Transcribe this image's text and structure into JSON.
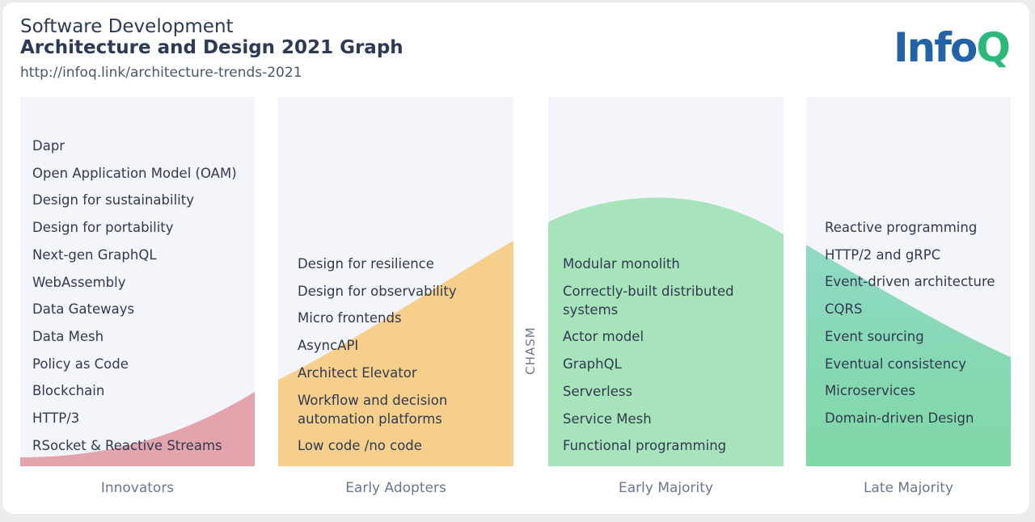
{
  "header": {
    "line1": "Software Development",
    "line2": "Architecture and Design 2021 Graph",
    "url": "http://infoq.link/architecture-trends-2021"
  },
  "logo": {
    "part1": "Info",
    "part2": "Q"
  },
  "chasm_label": "CHASM",
  "colors": {
    "innovators": "#e3a4ad",
    "early_adopters": "#f6cf8c",
    "early_majority": "#a8e4bb",
    "late_majority_top": "#8fd9c5",
    "late_majority_bottom": "#80d8a5",
    "panel_bg": "#f4f5fa",
    "text": "#2f3a4f"
  },
  "columns": [
    {
      "stage": "Innovators",
      "items": [
        "Dapr",
        "Open Application Model (OAM)",
        "Design for sustainability",
        "Design for portability",
        "Next-gen GraphQL",
        "WebAssembly",
        "Data Gateways",
        "Data Mesh",
        "Policy as Code",
        "Blockchain",
        "HTTP/3",
        "RSocket & Reactive Streams"
      ]
    },
    {
      "stage": "Early Adopters",
      "items": [
        "Design for resilience",
        "Design for observability",
        "Micro frontends",
        "AsyncAPI",
        "Architect Elevator",
        "Workflow and decision\nautomation platforms",
        "Low code /no code"
      ]
    },
    {
      "stage": "Early Majority",
      "items": [
        "Modular monolith",
        "Correctly-built distributed\nsystems",
        "Actor model",
        "GraphQL",
        "Serverless",
        "Service Mesh",
        "Functional programming"
      ]
    },
    {
      "stage": "Late Majority",
      "items": [
        "Reactive programming",
        "HTTP/2 and gRPC",
        "Event-driven architecture",
        "CQRS",
        "Event sourcing",
        "Eventual consistency",
        "Microservices",
        "Domain-driven Design"
      ]
    }
  ]
}
